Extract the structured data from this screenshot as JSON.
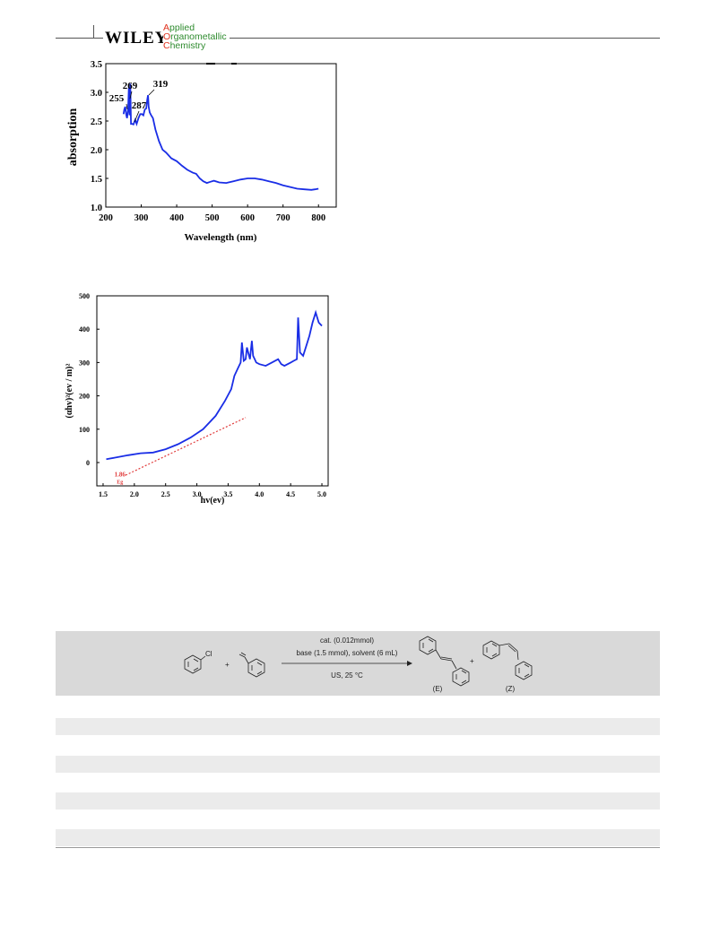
{
  "header": {
    "publisher": "WILEY",
    "journal_lines": [
      {
        "cap": "A",
        "rest": "pplied"
      },
      {
        "cap": "O",
        "rest": "rganometallic"
      },
      {
        "cap": "C",
        "rest": "hemistry"
      }
    ]
  },
  "chart_data": [
    {
      "type": "line",
      "title": "",
      "xlabel": "Wavelength (nm)",
      "ylabel": "absorption",
      "xlim": [
        200,
        850
      ],
      "ylim": [
        1.0,
        3.5
      ],
      "xticks": [
        "200",
        "300",
        "400",
        "500",
        "600",
        "700",
        "800"
      ],
      "yticks": [
        "1.0",
        "1.5",
        "2.0",
        "2.5",
        "3.0",
        "3.5"
      ],
      "annotations": [
        "255",
        "269",
        "287",
        "319"
      ],
      "color": "#1a2ee6",
      "series": [
        {
          "x": [
            250,
            252,
            255,
            258,
            260,
            263,
            265,
            267,
            269,
            271,
            274,
            278,
            283,
            287,
            292,
            297,
            302,
            306,
            310,
            314,
            317,
            319,
            321,
            324,
            328,
            333,
            340,
            350,
            360,
            370,
            385,
            400,
            415,
            430,
            445,
            455,
            465,
            475,
            485,
            495,
            505,
            520,
            540,
            560,
            580,
            600,
            620,
            640,
            660,
            680,
            700,
            720,
            740,
            760,
            780,
            790,
            800
          ],
          "y": [
            2.62,
            2.7,
            2.75,
            2.6,
            2.55,
            2.7,
            3.08,
            2.6,
            3.15,
            2.45,
            2.45,
            2.44,
            2.52,
            2.45,
            2.55,
            2.62,
            2.62,
            2.6,
            2.7,
            2.72,
            2.88,
            2.95,
            2.75,
            2.65,
            2.6,
            2.55,
            2.35,
            2.15,
            2.0,
            1.95,
            1.85,
            1.8,
            1.72,
            1.65,
            1.6,
            1.58,
            1.5,
            1.45,
            1.42,
            1.44,
            1.46,
            1.43,
            1.42,
            1.45,
            1.48,
            1.5,
            1.5,
            1.48,
            1.45,
            1.42,
            1.38,
            1.35,
            1.32,
            1.31,
            1.3,
            1.31,
            1.32
          ]
        }
      ]
    },
    {
      "type": "line",
      "title": "",
      "xlabel": "hv(ev)",
      "ylabel": "(αhv)²(ev / m)²",
      "xlim": [
        1.4,
        5.1
      ],
      "ylim": [
        -70,
        500
      ],
      "xticks": [
        "1.5",
        "2.0",
        "2.5",
        "3.0",
        "3.5",
        "4.0",
        "4.5",
        "5.0"
      ],
      "yticks": [
        "0",
        "100",
        "200",
        "300",
        "400",
        "500"
      ],
      "annotations": [
        "1.86",
        "Eg"
      ],
      "series": [
        {
          "name": "",
          "color": "#1a2ee6",
          "x": [
            1.55,
            1.7,
            1.9,
            2.1,
            2.3,
            2.5,
            2.7,
            2.9,
            3.1,
            3.3,
            3.45,
            3.55,
            3.6,
            3.65,
            3.7,
            3.72,
            3.75,
            3.78,
            3.8,
            3.85,
            3.88,
            3.9,
            3.95,
            4.0,
            4.1,
            4.2,
            4.3,
            4.35,
            4.4,
            4.5,
            4.55,
            4.6,
            4.62,
            4.65,
            4.7,
            4.75,
            4.8,
            4.85,
            4.9,
            4.95,
            5.0
          ],
          "y": [
            10,
            15,
            22,
            28,
            30,
            40,
            55,
            75,
            100,
            140,
            185,
            220,
            260,
            280,
            300,
            360,
            305,
            310,
            345,
            310,
            365,
            320,
            300,
            295,
            290,
            300,
            310,
            295,
            290,
            300,
            305,
            310,
            435,
            330,
            320,
            350,
            380,
            420,
            450,
            420,
            410
          ]
        },
        {
          "name": "",
          "color": "#e03a3a",
          "dashed": true,
          "x": [
            1.86,
            3.78
          ],
          "y": [
            -38,
            135
          ]
        }
      ]
    }
  ],
  "scheme": {
    "reagent_top": "cat. (0.012mmol)",
    "reagent_mid": "base (1.5 mmol), solvent (6 mL)",
    "reagent_bottom": "US, 25 °C",
    "substituent": "Cl",
    "plus": "+",
    "product_e_label": "(E)",
    "product_z_label": "(Z)"
  }
}
